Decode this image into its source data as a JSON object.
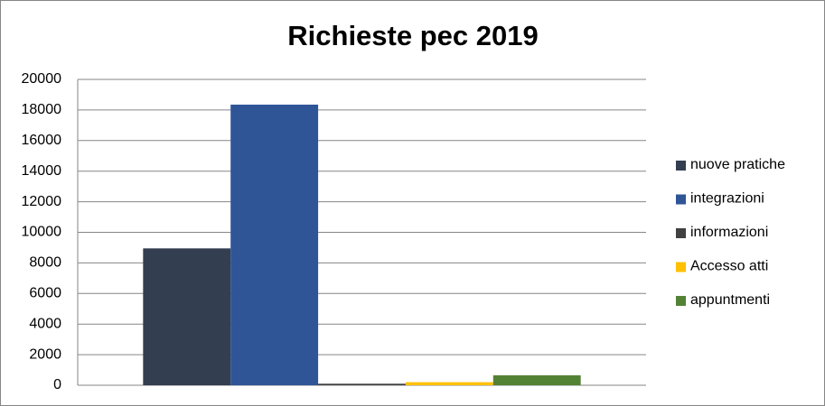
{
  "chart_data": {
    "type": "bar",
    "title": "Richieste pec 2019",
    "categories": [
      null
    ],
    "series": [
      {
        "name": "nuove pratiche",
        "color": "#333f50",
        "values": [
          8950
        ]
      },
      {
        "name": "integrazioni",
        "color": "#2f5597",
        "values": [
          18350
        ]
      },
      {
        "name": "informazioni",
        "color": "#404040",
        "values": [
          100
        ]
      },
      {
        "name": "Accesso atti",
        "color": "#ffc000",
        "values": [
          200
        ]
      },
      {
        "name": "appuntmenti",
        "color": "#548235",
        "values": [
          650
        ]
      }
    ],
    "ylim": [
      0,
      20000
    ],
    "yticks": [
      0,
      2000,
      4000,
      6000,
      8000,
      10000,
      12000,
      14000,
      16000,
      18000,
      20000
    ],
    "grid": true,
    "legend": "right"
  }
}
